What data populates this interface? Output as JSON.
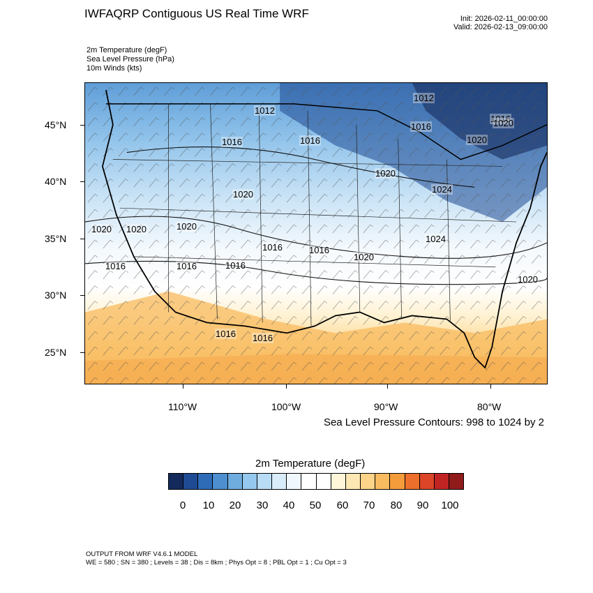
{
  "header": {
    "title": "IWFAQRP Contiguous US Real Time WRF",
    "init": "Init: 2026-02-11_00:00:00",
    "valid": "Valid: 2026-02-13_09:00:00"
  },
  "fields": [
    "2m Temperature   (degF)",
    "Sea Level Pressure   (hPa)",
    "10m Winds   (kts)"
  ],
  "axes": {
    "lat_labels": [
      "45°N",
      "40°N",
      "35°N",
      "30°N",
      "25°N"
    ],
    "lon_labels": [
      "110°W",
      "100°W",
      "90°W",
      "80°W"
    ]
  },
  "pressure_labels": [
    "1012",
    "1012",
    "1020",
    "1016",
    "1016",
    "1016",
    "1016",
    "1020",
    "1020",
    "1020",
    "1020",
    "1020",
    "1020",
    "1016",
    "1016",
    "1016",
    "1016",
    "1016",
    "1020",
    "1024",
    "1024",
    "1020",
    "1016",
    "1016"
  ],
  "contour_note": "Sea Level Pressure Contours: 998 to 1024 by 2",
  "colorbar": {
    "title": "2m Temperature  (degF)",
    "colors": [
      "#142a5c",
      "#1f4b94",
      "#2e6cb8",
      "#4d8fcf",
      "#70addf",
      "#95c8ee",
      "#b8dcf5",
      "#d8ecfa",
      "#f1f8fd",
      "#ffffff",
      "#ffffff",
      "#fff6d9",
      "#fde8b3",
      "#fbd489",
      "#f8bb5f",
      "#f49b3b",
      "#ec6f2c",
      "#dc4528",
      "#c22424",
      "#8f1b1b"
    ],
    "labels": [
      "0",
      "10",
      "20",
      "30",
      "40",
      "50",
      "60",
      "70",
      "80",
      "90",
      "100"
    ]
  },
  "footer": {
    "model": "OUTPUT FROM WRF V4.6.1 MODEL",
    "settings": "WE = 580 ; SN = 380 ; Levels = 38 ; Dis = 8km ; Phys Opt = 8 ; PBL Opt = 1 ; Cu Opt = 3"
  }
}
